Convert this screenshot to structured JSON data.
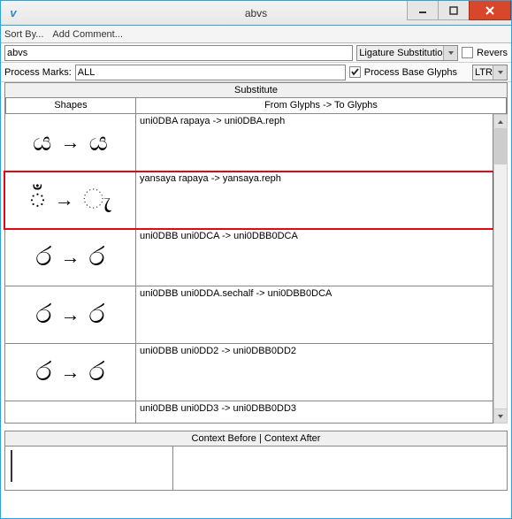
{
  "window": {
    "title": "abvs"
  },
  "menu": {
    "sort": "Sort By...",
    "comment": "Add Comment..."
  },
  "toolbar": {
    "feature": "abvs",
    "lookup_type": "Ligature Substitution",
    "reverse_label": "Revers",
    "process_marks_label": "Process Marks:",
    "process_marks_value": "ALL",
    "process_base_label": "Process Base Glyphs",
    "process_base_checked": true,
    "direction": "LTR"
  },
  "headers": {
    "substitute": "Substitute",
    "shapes": "Shapes",
    "glyphs": "From Glyphs -> To Glyphs",
    "context": "Context Before | Context After"
  },
  "rows": [
    {
      "shapes": [
        "ය",
        "ය"
      ],
      "text": "uni0DBA rapaya -> uni0DBA.reph",
      "hl": false
    },
    {
      "shapes": [
        "ඁ",
        "ැ"
      ],
      "text": "yansaya rapaya -> yansaya.reph",
      "hl": true
    },
    {
      "shapes": [
        "ර",
        "ර"
      ],
      "text": "uni0DBB uni0DCA -> uni0DBB0DCA",
      "hl": false
    },
    {
      "shapes": [
        "ර",
        "ර"
      ],
      "text": "uni0DBB uni0DDA.sechalf -> uni0DBB0DCA",
      "hl": false
    },
    {
      "shapes": [
        "ර",
        "ර"
      ],
      "text": "uni0DBB uni0DD2 -> uni0DBB0DD2",
      "hl": false
    },
    {
      "shapes": [
        "",
        ""
      ],
      "text": "uni0DBB uni0DD3 -> uni0DBB0DD3",
      "hl": false,
      "short": true
    }
  ],
  "colors": {
    "highlight": "#e30613",
    "titlebar_border": "#2da4e0",
    "close_btn": "#d9472b"
  }
}
